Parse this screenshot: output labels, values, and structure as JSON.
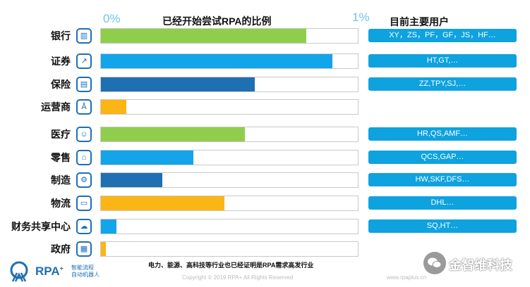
{
  "chart_data": {
    "type": "bar",
    "orientation": "horizontal",
    "title": "已经开始尝试RPA的比例",
    "axis": {
      "min_label": "0%",
      "max_label": "1%",
      "range": [
        0,
        1
      ]
    },
    "categories": [
      "银行",
      "证券",
      "保险",
      "运营商",
      "医疗",
      "零售",
      "制造",
      "物流",
      "财务共享中心",
      "政府"
    ],
    "values": [
      0.8,
      0.9,
      0.6,
      0.1,
      0.56,
      0.36,
      0.24,
      0.48,
      0.06,
      0.02
    ],
    "bar_colors": [
      "#8fce4a",
      "#12a5ea",
      "#1f6fb3",
      "#fbb515",
      "#8fce4a",
      "#12a5ea",
      "#1f6fb3",
      "#fbb515",
      "#12a5ea",
      "#fbb515"
    ],
    "icons": [
      "bank-icon",
      "stock-chart-icon",
      "insurance-card-icon",
      "tower-icon",
      "doctor-icon",
      "sale-shop-icon",
      "robot-arm-icon",
      "truck-icon",
      "cloud-shield-icon",
      "government-building-icon"
    ],
    "users_header": "目前主要用户",
    "users": [
      "XY，ZS，PF，GF，JS，HF…",
      "HT,GT,…",
      "ZZ,TPY,SJ,…",
      "",
      "HR,QS,AMF…",
      "QCS,GAP…",
      "HW,SKF,DFS…",
      "DHL…",
      "SQ,HT…",
      ""
    ]
  },
  "footnote": "电力、能源、高科技等行业也已经证明是RPA需求高发行业",
  "copyright": "Copyright © 2019 RPA+ All Rights Reserved",
  "website": "www.rpaplus.cn",
  "logo": {
    "brand": "RPA",
    "sup": "+",
    "tagline_1": "智能流程",
    "tagline_2": "自动机器人"
  },
  "watermark": "金智维科技"
}
